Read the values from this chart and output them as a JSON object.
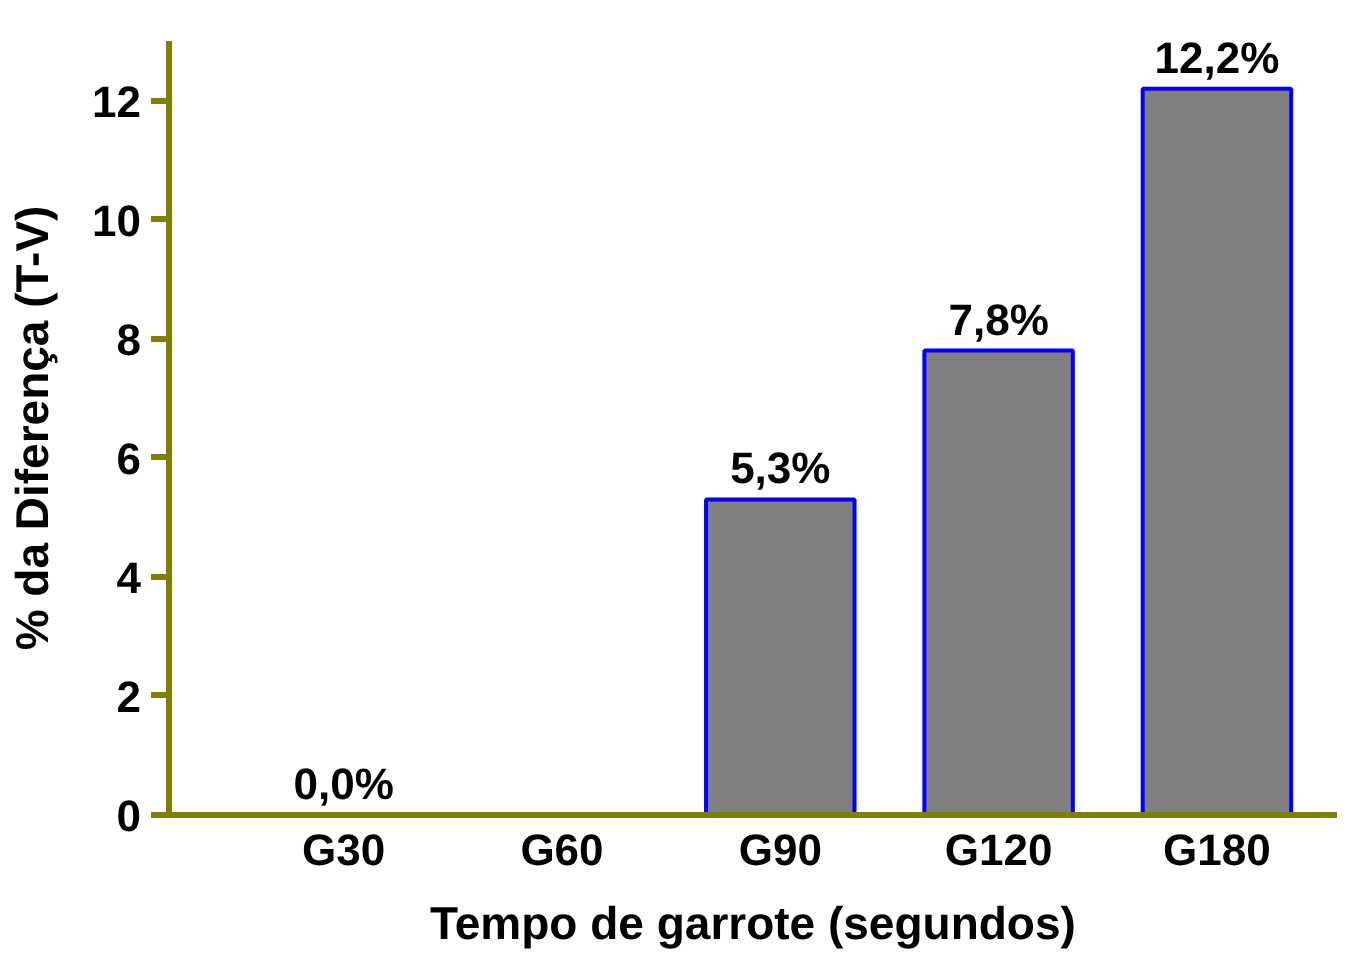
{
  "chart_data": {
    "type": "bar",
    "xlabel": "Tempo de garrote (segundos)",
    "ylabel": "% da Diferença (T-V)",
    "categories": [
      "G30",
      "G60",
      "G90",
      "G120",
      "G180"
    ],
    "values": [
      0,
      0,
      5.3,
      7.8,
      12.2
    ],
    "value_labels": [
      "0,0%",
      null,
      "5,3%",
      "7,8%",
      "12,2%"
    ],
    "color": "#808080",
    "ylim": [
      0,
      13
    ],
    "yticks": [
      0,
      2,
      4,
      6,
      8,
      10,
      12
    ]
  }
}
